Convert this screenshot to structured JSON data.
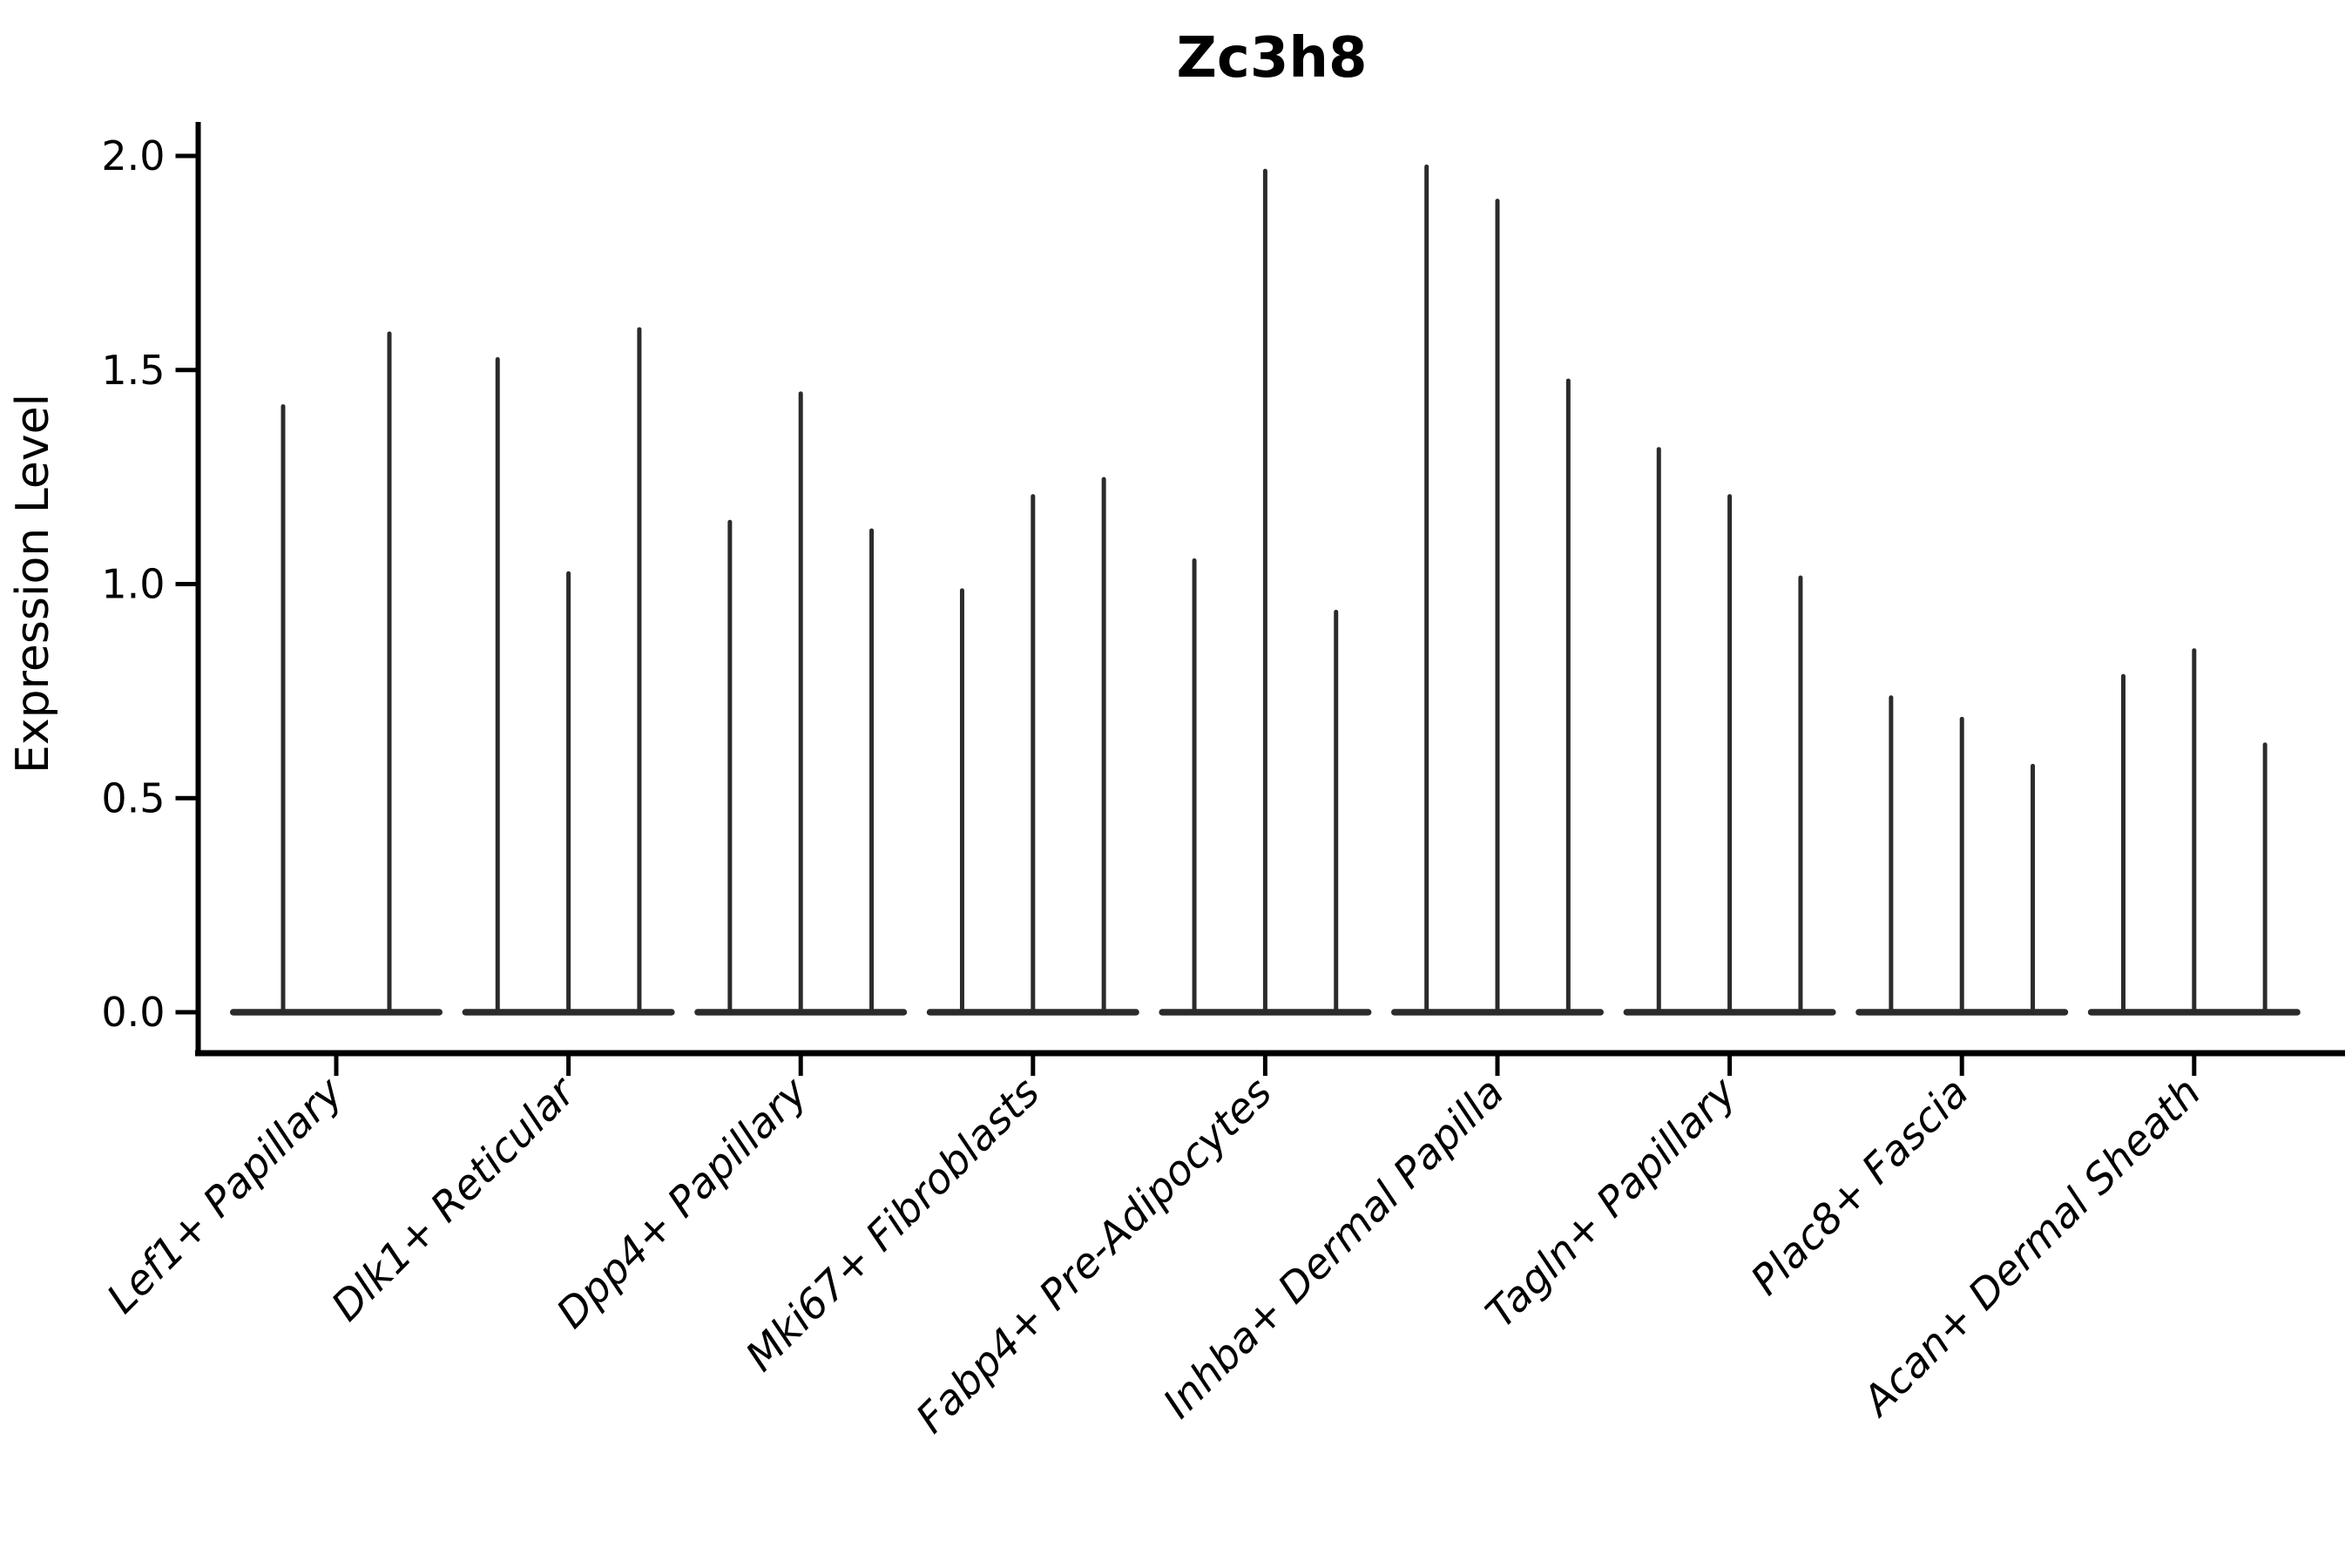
{
  "title": "Zc3h8",
  "chart_data": {
    "type": "violin",
    "title": "Zc3h8",
    "xlabel": "",
    "ylabel": "Expression Level",
    "ylim": [
      0,
      2.05
    ],
    "yticks": [
      0.0,
      0.5,
      1.0,
      1.5,
      2.0
    ],
    "ytick_labels": [
      "0.0",
      "0.5",
      "1.0",
      "1.5",
      "2.0"
    ],
    "grid": false,
    "legend": false,
    "categories": [
      "Lef1+ Papillary",
      "Dlk1+ Reticular",
      "Dpp4+ Papillary",
      "Mki67+ Fibroblasts",
      "Fabp4+ Pre-Adipocytes",
      "Inhba+ Dermal Papilla",
      "Tagln+ Papillary",
      "Plac8+ Fascia",
      "Acan+ Dermal Sheath"
    ],
    "groups": [
      {
        "category": "Lef1+ Papillary",
        "violin_max_values": [
          1.42,
          1.59
        ]
      },
      {
        "category": "Dlk1+ Reticular",
        "violin_max_values": [
          1.53,
          1.03,
          1.6
        ]
      },
      {
        "category": "Dpp4+ Papillary",
        "violin_max_values": [
          1.15,
          1.45,
          1.13
        ]
      },
      {
        "category": "Mki67+ Fibroblasts",
        "violin_max_values": [
          0.99,
          1.21,
          1.25
        ]
      },
      {
        "category": "Fabp4+ Pre-Adipocytes",
        "violin_max_values": [
          1.06,
          1.97,
          0.94
        ]
      },
      {
        "category": "Inhba+ Dermal Papilla",
        "violin_max_values": [
          1.98,
          1.9,
          1.48
        ]
      },
      {
        "category": "Tagln+ Papillary",
        "violin_max_values": [
          1.32,
          1.21,
          1.02
        ]
      },
      {
        "category": "Plac8+ Fascia",
        "violin_max_values": [
          0.74,
          0.69,
          0.58
        ]
      },
      {
        "category": "Acan+ Dermal Sheath",
        "violin_max_values": [
          0.79,
          0.85,
          0.63
        ]
      }
    ],
    "colors": {
      "ink": "#000000",
      "violin": "#2b2b2b",
      "background": "#ffffff"
    }
  }
}
